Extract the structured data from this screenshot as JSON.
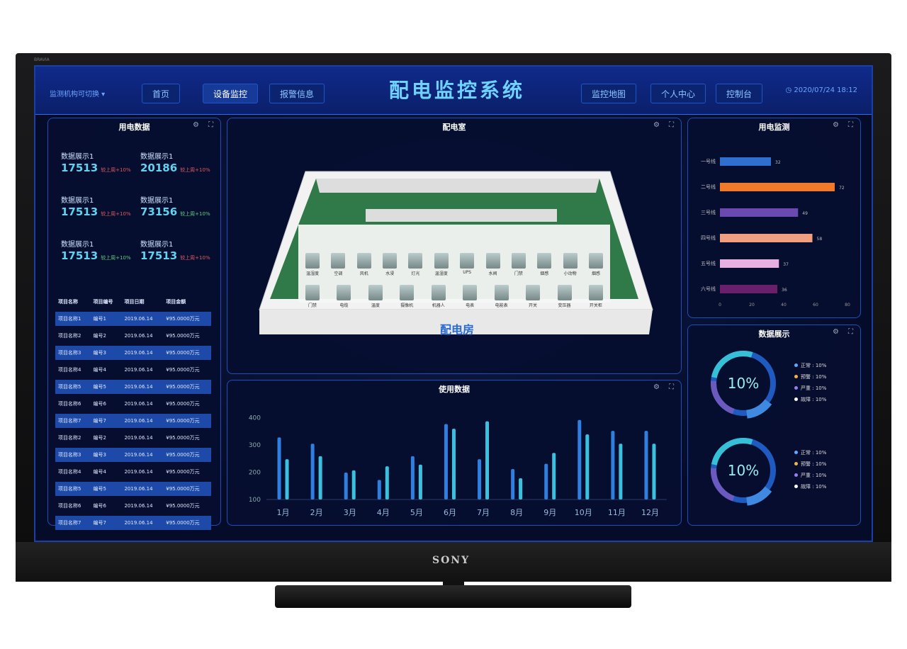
{
  "tv": {
    "brand": "SONY",
    "model_badge": "BRAVIA"
  },
  "header": {
    "title": "配电监控系统",
    "selector": "监测机构可切换",
    "datetime": "2020/07/24 18:12",
    "nav": [
      {
        "label": "首页"
      },
      {
        "label": "设备监控",
        "active": true
      },
      {
        "label": "报警信息"
      },
      {
        "label": "监控地图"
      },
      {
        "label": "个人中心"
      },
      {
        "label": "控制台"
      }
    ]
  },
  "left_panel": {
    "title": "用电数据",
    "stats": [
      {
        "label": "数据展示1",
        "value": "17513",
        "delta": "较上周+10%",
        "color": "#e05a5a"
      },
      {
        "label": "数据展示1",
        "value": "20186",
        "delta": "较上周+10%",
        "color": "#e05a5a"
      },
      {
        "label": "数据展示1",
        "value": "17513",
        "delta": "较上周+10%",
        "color": "#e05a5a"
      },
      {
        "label": "数据展示1",
        "value": "73156",
        "delta": "较上周+10%",
        "color": "#5ad07a"
      },
      {
        "label": "数据展示1",
        "value": "17513",
        "delta": "较上周+10%",
        "color": "#5ad07a"
      },
      {
        "label": "数据展示1",
        "value": "17513",
        "delta": "较上周+10%",
        "color": "#e05a5a"
      }
    ],
    "table": {
      "headers": [
        "项目名称",
        "项目编号",
        "项目日期",
        "项目金额"
      ],
      "rows": [
        [
          "项目名称1",
          "编号1",
          "2019.06.14",
          "¥95.0000万元"
        ],
        [
          "项目名称2",
          "编号2",
          "2019.06.14",
          "¥95.0000万元"
        ],
        [
          "项目名称3",
          "编号3",
          "2019.06.14",
          "¥95.0000万元"
        ],
        [
          "项目名称4",
          "编号4",
          "2019.06.14",
          "¥95.0000万元"
        ],
        [
          "项目名称5",
          "编号5",
          "2019.06.14",
          "¥95.0000万元"
        ],
        [
          "项目名称6",
          "编号6",
          "2019.06.14",
          "¥95.0000万元"
        ],
        [
          "项目名称7",
          "编号7",
          "2019.06.14",
          "¥95.0000万元"
        ],
        [
          "项目名称2",
          "编号2",
          "2019.06.14",
          "¥95.0000万元"
        ],
        [
          "项目名称3",
          "编号3",
          "2019.06.14",
          "¥95.0000万元"
        ],
        [
          "项目名称4",
          "编号4",
          "2019.06.14",
          "¥95.0000万元"
        ],
        [
          "项目名称5",
          "编号5",
          "2019.06.14",
          "¥95.0000万元"
        ],
        [
          "项目名称6",
          "编号6",
          "2019.06.14",
          "¥95.0000万元"
        ],
        [
          "项目名称7",
          "编号7",
          "2019.06.14",
          "¥95.0000万元"
        ]
      ]
    }
  },
  "room_panel": {
    "title": "配电室",
    "room_label": "配电房",
    "equipment_row1": [
      "温湿度",
      "空调",
      "风机",
      "水浸",
      "灯光",
      "温湿度",
      "UPS",
      "水阀",
      "门禁",
      "烟感",
      "小动物",
      "烟感"
    ],
    "equipment_row2": [
      "门禁",
      "电缆",
      "温度",
      "摄像机",
      "机器人",
      "电表",
      "电能表",
      "开关",
      "变压器",
      "开关柜"
    ]
  },
  "usage_panel": {
    "title": "使用数据"
  },
  "monitor_panel": {
    "title": "用电监测"
  },
  "display_panel": {
    "title": "数据展示",
    "donuts": [
      {
        "center": "10%",
        "legend": [
          {
            "label": "正常",
            "value": "10%",
            "color": "#5fa8ff"
          },
          {
            "label": "预警",
            "value": "10%",
            "color": "#f0b44a"
          },
          {
            "label": "严重",
            "value": "10%",
            "color": "#9b7cf0"
          },
          {
            "label": "故障",
            "value": "10%",
            "color": "#ffffff"
          }
        ]
      },
      {
        "center": "10%",
        "legend": [
          {
            "label": "正常",
            "value": "10%",
            "color": "#5fa8ff"
          },
          {
            "label": "预警",
            "value": "10%",
            "color": "#f0b44a"
          },
          {
            "label": "严重",
            "value": "10%",
            "color": "#9b7cf0"
          },
          {
            "label": "故障",
            "value": "10%",
            "color": "#ffffff"
          }
        ]
      }
    ]
  },
  "chart_data": [
    {
      "type": "bar",
      "orientation": "vertical",
      "categories": [
        "1月",
        "2月",
        "3月",
        "4月",
        "5月",
        "6月",
        "7月",
        "8月",
        "9月",
        "10月",
        "11月",
        "12月"
      ],
      "series": [
        {
          "values": [
            328,
            305,
            199,
            172,
            259,
            377,
            248,
            212,
            231,
            392,
            352,
            352
          ],
          "color": "#2f7fe0"
        },
        {
          "values": [
            248,
            259,
            207,
            222,
            228,
            360,
            387,
            178,
            271,
            339,
            305,
            305
          ],
          "color": "#3cc0e0"
        }
      ],
      "yticks": [
        100,
        200,
        300,
        400
      ],
      "ylim": [
        100,
        420
      ],
      "grid": false
    },
    {
      "type": "bar",
      "orientation": "horizontal",
      "categories": [
        "一号线",
        "二号线",
        "三号线",
        "四号线",
        "五号线",
        "六号线"
      ],
      "values": [
        32,
        72,
        49,
        58,
        37,
        36
      ],
      "colors": [
        "#2f6fd0",
        "#f07a2a",
        "#6a4ab0",
        "#f0a080",
        "#e8b0e0",
        "#6a1f6a"
      ],
      "xticks": [
        0,
        20,
        40,
        60,
        80
      ],
      "xlim": [
        0,
        80
      ],
      "grid": false
    }
  ]
}
